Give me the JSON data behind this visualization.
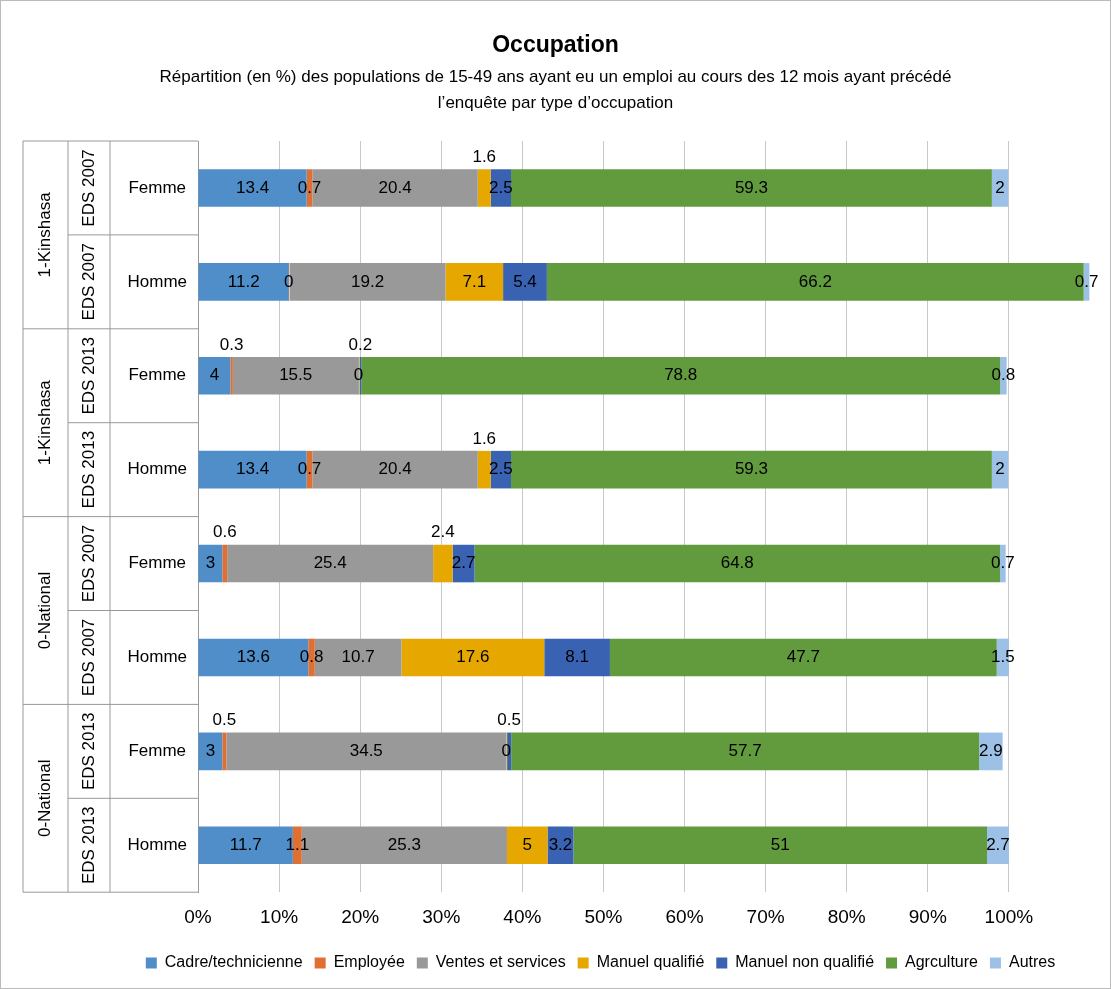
{
  "chart_data": {
    "type": "bar",
    "orientation": "horizontal",
    "stacked": true,
    "title": "Occupation",
    "subtitle": "Répartition (en %) des populations  de 15-49 ans ayant eu un emploi au cours des 12 mois ayant précédé l’enquête par type d’occupation",
    "categories": [
      "Femme",
      "Homme",
      "Femme",
      "Homme",
      "Femme",
      "Homme",
      "Femme",
      "Homme"
    ],
    "annotations": [
      "EDS 2007",
      "EDS 2007",
      "EDS 2013",
      "EDS 2013",
      "EDS 2007",
      "EDS 2007",
      "EDS 2013",
      "EDS 2013",
      "1-Kinshasa",
      "1-Kinshasa",
      "0-National",
      "0-National"
    ],
    "series": [
      {
        "name": "Cadre/technicienne",
        "color": "#4f8ec8",
        "values": [
          13.4,
          11.2,
          4,
          13.4,
          3,
          13.6,
          3,
          11.7
        ]
      },
      {
        "name": "Employée",
        "color": "#e07032",
        "values": [
          0.7,
          0,
          0.3,
          0.7,
          0.6,
          0.8,
          0.5,
          1.1
        ]
      },
      {
        "name": "Ventes et services",
        "color": "#999999",
        "values": [
          20.4,
          19.2,
          15.5,
          20.4,
          25.4,
          10.7,
          34.5,
          25.3
        ]
      },
      {
        "name": "Manuel qualifié",
        "color": "#e6a800",
        "values": [
          1.6,
          7.1,
          0,
          1.6,
          2.4,
          17.6,
          0,
          5
        ]
      },
      {
        "name": "Manuel non qualifié",
        "color": "#3a62b2",
        "values": [
          2.5,
          5.4,
          0.2,
          2.5,
          2.7,
          8.1,
          0.5,
          3.2
        ]
      },
      {
        "name": "Agrculture",
        "color": "#629b3e",
        "values": [
          59.3,
          66.2,
          78.8,
          59.3,
          64.8,
          47.7,
          57.7,
          51
        ]
      },
      {
        "name": "Autres",
        "color": "#9dc1e6",
        "values": [
          2,
          0.7,
          0.8,
          2,
          0.7,
          1.5,
          2.9,
          2.7
        ]
      }
    ],
    "xlim": [
      0,
      110
    ],
    "xticks": [
      {
        "value": 0,
        "label": "0%"
      },
      {
        "value": 10,
        "label": "10%"
      },
      {
        "value": 20,
        "label": "20%"
      },
      {
        "value": 30,
        "label": "30%"
      },
      {
        "value": 40,
        "label": "40%"
      },
      {
        "value": 50,
        "label": "50%"
      },
      {
        "value": 60,
        "label": "60%"
      },
      {
        "value": 70,
        "label": "70%"
      },
      {
        "value": 80,
        "label": "80%"
      },
      {
        "value": 90,
        "label": "90%"
      },
      {
        "value": 100,
        "label": "100%"
      }
    ],
    "data_labels": true,
    "grid": "x",
    "legend": "bottom"
  }
}
